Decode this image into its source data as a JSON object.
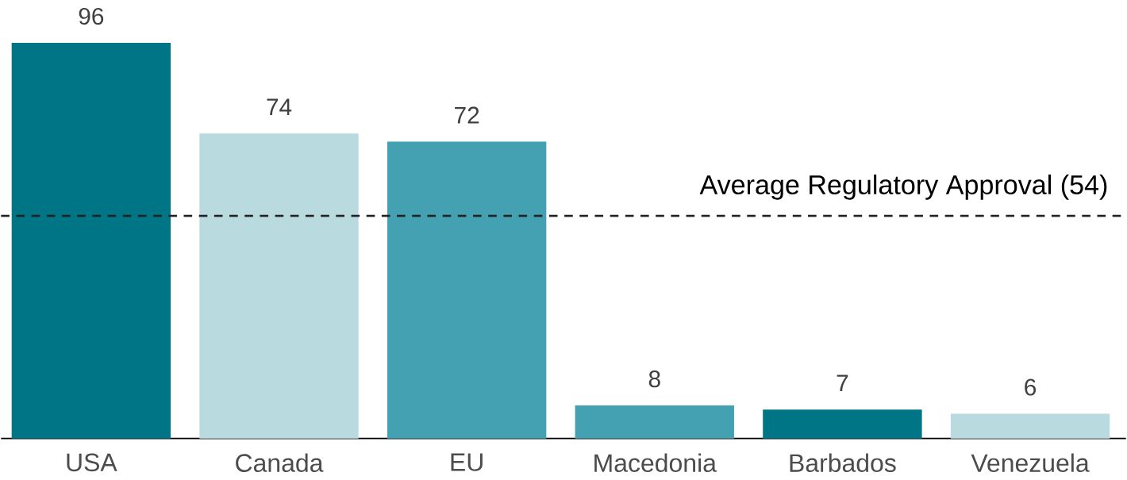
{
  "chart_data": {
    "type": "bar",
    "categories": [
      "USA",
      "Canada",
      "EU",
      "Macedonia",
      "Barbados",
      "Venezuela"
    ],
    "values": [
      96,
      74,
      72,
      8,
      7,
      6
    ],
    "colors": [
      "#007585",
      "#b9dade",
      "#43a1b1",
      "#43a1b1",
      "#007585",
      "#b9dade"
    ],
    "data_labels": true,
    "ref_lines": [
      {
        "axis": "y",
        "value": 54,
        "label": "Average Regulatory Approval (54)",
        "line_style": "dashed",
        "color": "#222222"
      }
    ]
  }
}
